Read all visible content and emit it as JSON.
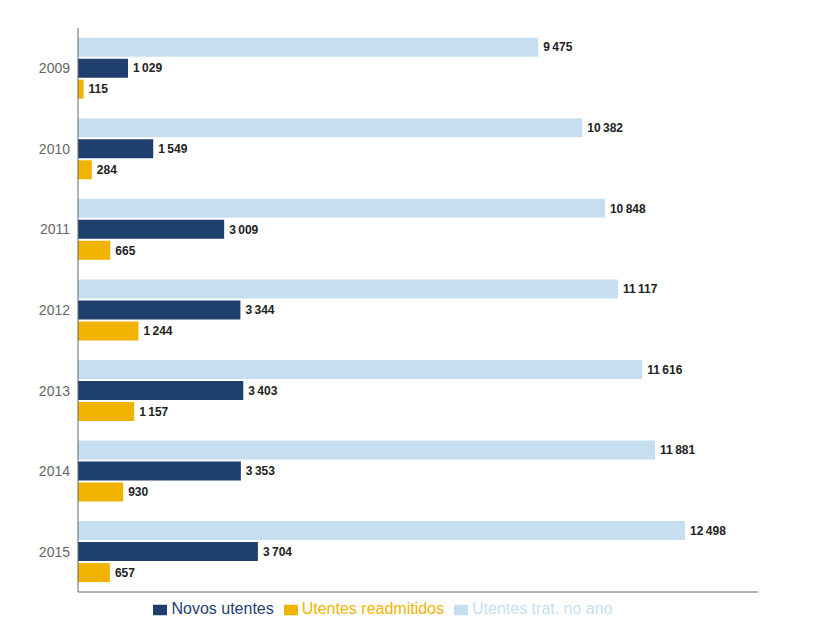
{
  "chart_data": {
    "type": "bar",
    "orientation": "horizontal",
    "categories": [
      "2009",
      "2010",
      "2011",
      "2012",
      "2013",
      "2014",
      "2015"
    ],
    "series": [
      {
        "name": "Utentes trat. no ano",
        "color": "#c5dff0",
        "values": [
          9475,
          10382,
          10848,
          11117,
          11616,
          11881,
          12498
        ],
        "value_labels": [
          "9 475",
          "10 382",
          "10 848",
          "11 117",
          "11 616",
          "11 881",
          "12 498"
        ]
      },
      {
        "name": "Novos utentes",
        "color": "#1f3f6e",
        "values": [
          1029,
          1549,
          3009,
          3344,
          3403,
          3353,
          3704
        ],
        "value_labels": [
          "1 029",
          "1 549",
          "3 009",
          "3 344",
          "3 403",
          "3 353",
          "3 704"
        ]
      },
      {
        "name": "Utentes readmitidos",
        "color": "#f0b400",
        "values": [
          115,
          284,
          665,
          1244,
          1157,
          930,
          657
        ],
        "value_labels": [
          "115",
          "284",
          "665",
          "1 244",
          "1 157",
          "930",
          "657"
        ]
      }
    ],
    "xlim": [
      0,
      14000
    ],
    "data_labels": true,
    "tick_labels": "y",
    "grid": false,
    "legend": "bottom"
  }
}
